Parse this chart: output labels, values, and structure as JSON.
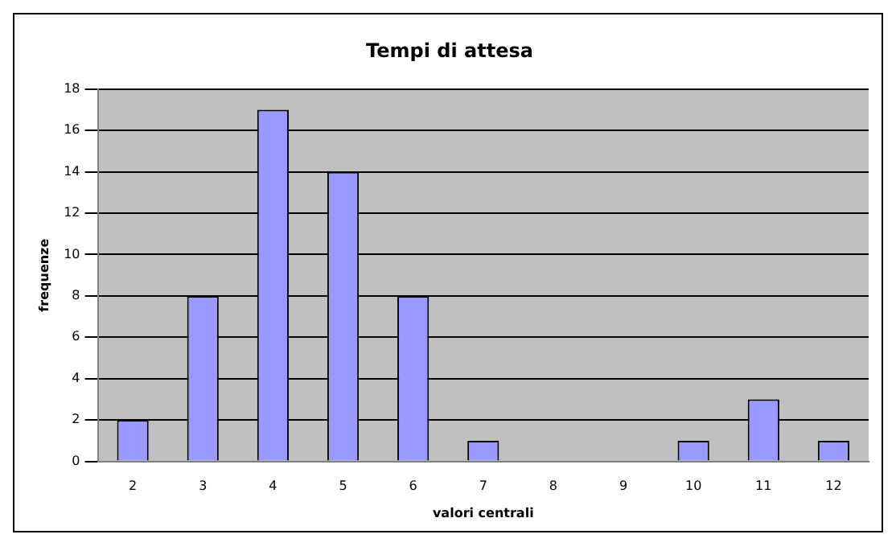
{
  "chart_data": {
    "type": "bar",
    "title": "Tempi di attesa",
    "xlabel": "valori centrali",
    "ylabel": "frequenze",
    "categories": [
      "2",
      "3",
      "4",
      "5",
      "6",
      "7",
      "8",
      "9",
      "10",
      "11",
      "12"
    ],
    "values": [
      2,
      8,
      17,
      14,
      8,
      1,
      0,
      0,
      1,
      3,
      1
    ],
    "color": "#9999ff",
    "ylim": [
      0,
      18
    ],
    "yticks": [
      0,
      2,
      4,
      6,
      8,
      10,
      12,
      14,
      16,
      18
    ],
    "grid": "y",
    "legend": false
  }
}
